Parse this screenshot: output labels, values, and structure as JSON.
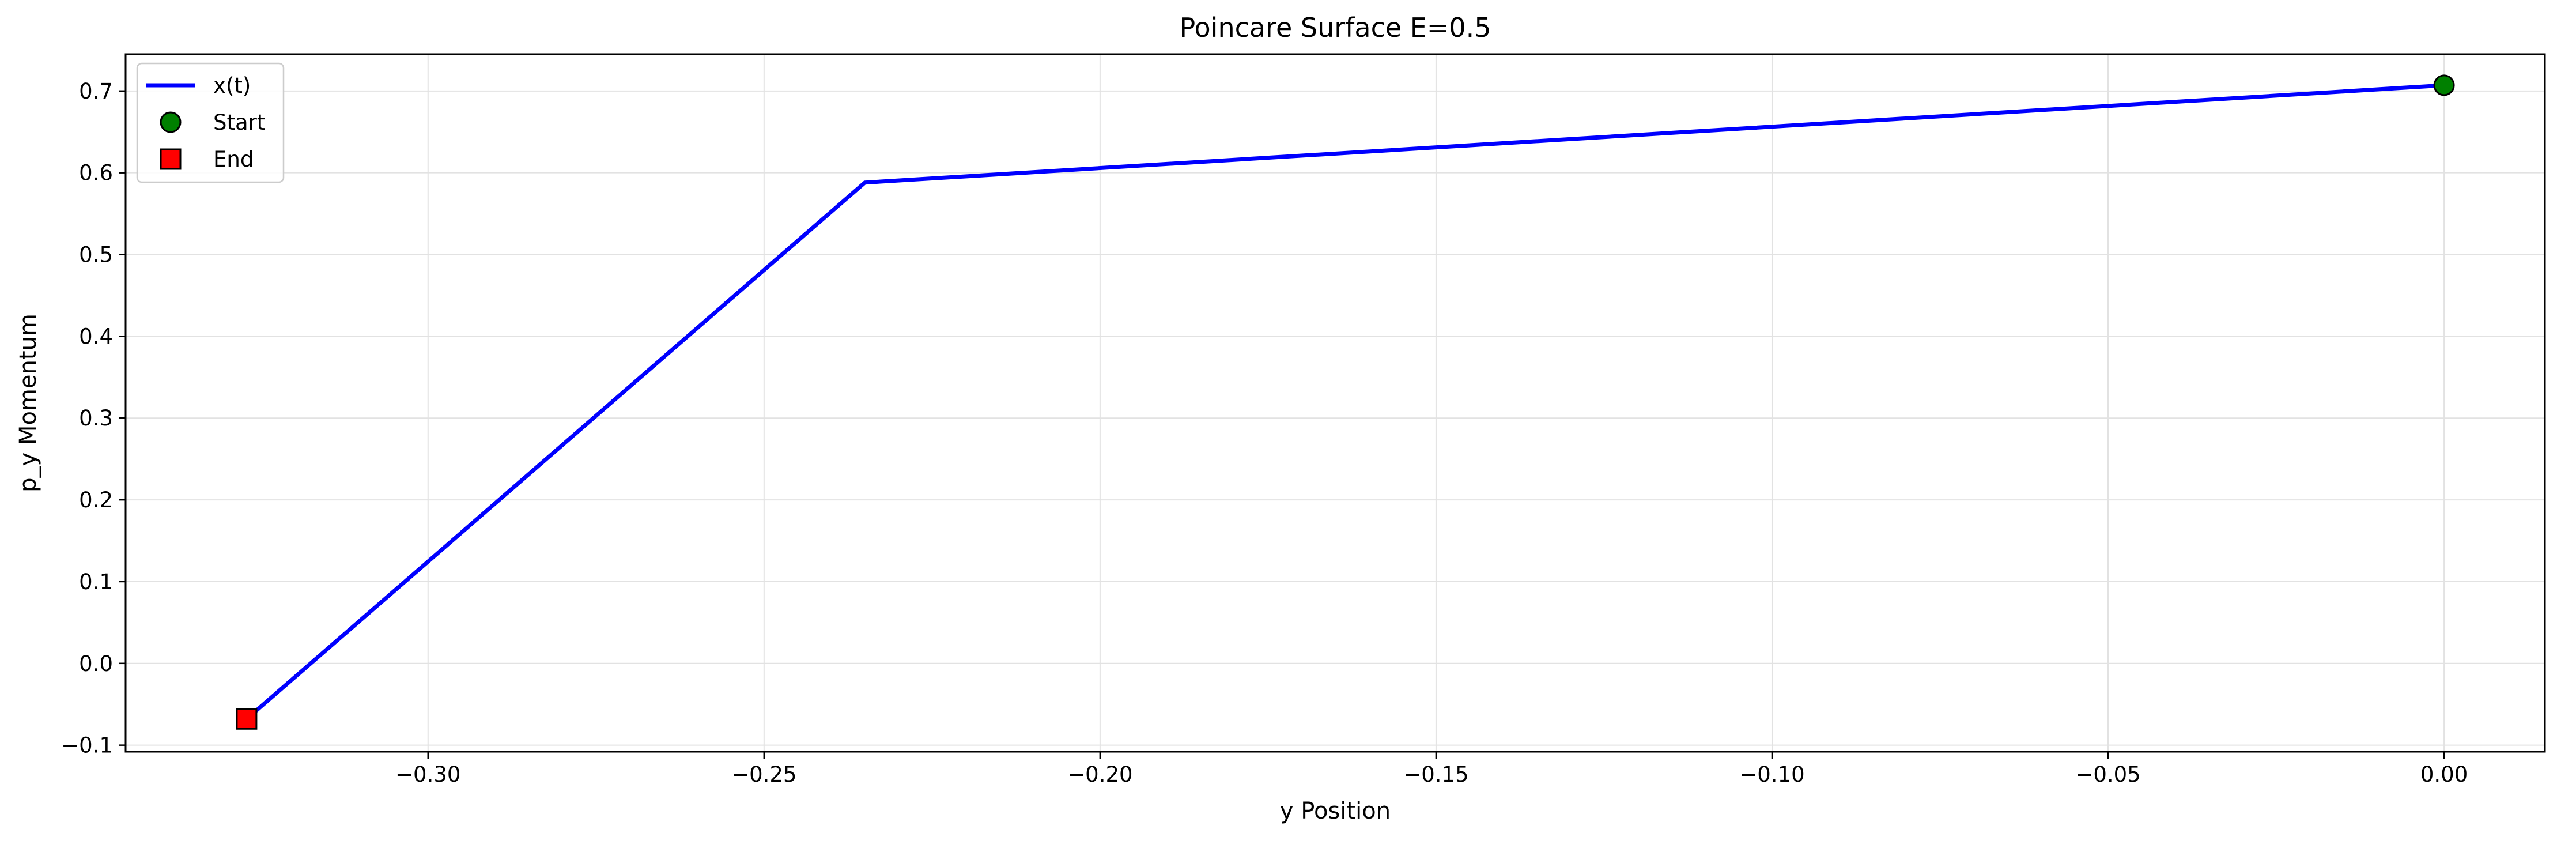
{
  "chart_data": {
    "type": "line",
    "title": "Poincare Surface E=0.5",
    "xlabel": "y Position",
    "ylabel": "p_y Momentum",
    "xlim": [
      -0.345,
      0.015
    ],
    "ylim": [
      -0.108,
      0.745
    ],
    "xticks": [
      -0.3,
      -0.25,
      -0.2,
      -0.15,
      -0.1,
      -0.05,
      0.0
    ],
    "xtick_labels": [
      "−0.30",
      "−0.25",
      "−0.20",
      "−0.15",
      "−0.10",
      "−0.05",
      "0.00"
    ],
    "yticks": [
      -0.1,
      0.0,
      0.1,
      0.2,
      0.3,
      0.4,
      0.5,
      0.6,
      0.7
    ],
    "ytick_labels": [
      "−0.1",
      "0.0",
      "0.1",
      "0.2",
      "0.3",
      "0.4",
      "0.5",
      "0.6",
      "0.7"
    ],
    "grid": true,
    "legend_position": "upper left",
    "series": [
      {
        "name": "x(t)",
        "kind": "line",
        "color": "#0000ff",
        "x": [
          0.0,
          -0.235,
          -0.327
        ],
        "y": [
          0.707,
          0.588,
          -0.068
        ]
      },
      {
        "name": "Start",
        "kind": "marker",
        "marker": "circle",
        "color": "#008000",
        "x": [
          0.0
        ],
        "y": [
          0.707
        ]
      },
      {
        "name": "End",
        "kind": "marker",
        "marker": "square",
        "color": "#ff0000",
        "x": [
          -0.327
        ],
        "y": [
          -0.068
        ]
      }
    ]
  }
}
